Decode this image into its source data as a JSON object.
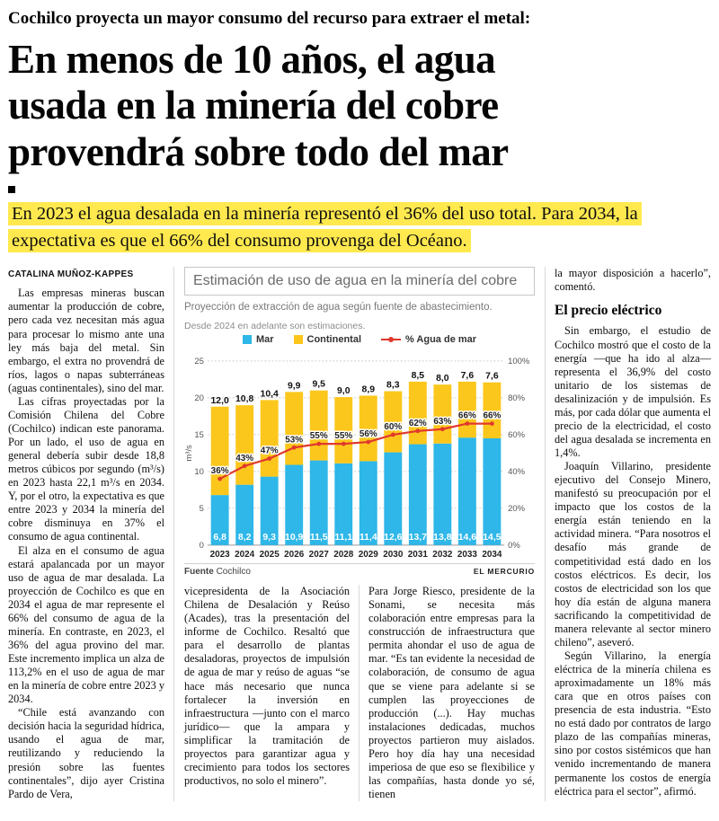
{
  "header": {
    "kicker": "Cochilco proyecta un mayor consumo del recurso para extraer el metal:",
    "headline_lines": [
      "En menos de 10 años, el agua",
      "usada en la minería del cobre",
      "provendrá sobre todo del mar"
    ],
    "deck": "En 2023 el agua desalada en la minería representó el 36% del uso total. Para 2034, la expectativa es que el 66% del consumo provenga del Océano.",
    "highlight_color": "#ffe94f"
  },
  "article": {
    "byline": "CATALINA MUÑOZ-KAPPES",
    "col1": [
      "Las empresas mineras buscan aumentar la producción de cobre, pero cada vez necesitan más agua para procesar lo mismo ante una ley más baja del metal. Sin embargo, el extra no provendrá de ríos, lagos o napas subterráneas (aguas continentales), sino del mar.",
      "Las cifras proyectadas por la Comisión Chilena del Cobre (Cochilco) indican este panorama. Por un lado, el uso de agua en general debería subir desde 18,8 metros cúbicos por segundo (m³/s) en 2023 hasta 22,1 m³/s en 2034. Y, por el otro, la expectativa es que entre 2023 y 2034 la minería del cobre disminuya en 37% el consumo de agua continental.",
      "El alza en el consumo de agua estará apalancada por un mayor uso de agua de mar desalada. La proyección de Cochilco es que en 2034 el agua de mar represente el 66% del consumo de agua de la minería. En contraste, en 2023, el 36% del agua provino del mar. Este incremento implica un alza de 113,2% en el uso de agua de mar en la minería de cobre entre 2023 y 2034.",
      "“Chile está avanzando con decisión hacia la seguridad hídrica, usando el agua de mar, reutilizando y reduciendo la presión sobre las fuentes continentales”, dijo ayer Cristina Pardo de Vera,"
    ],
    "col2": [
      "vicepresidenta de la Asociación Chilena de Desalación y Reúso (Acades), tras la presentación del informe de Cochilco. Resaltó que para el desarrollo de plantas desaladoras, proyectos de impulsión de agua de mar y reúso de aguas “se hace más necesario que nunca fortalecer la inversión en infraestructura —junto con el marco jurídico— que la ampara y simplificar la tramitación de proyectos para garantizar agua y crecimiento para todos los sectores productivos, no solo el minero”."
    ],
    "col3": [
      "Para Jorge Riesco, presidente de la Sonami, se necesita más colaboración entre empresas para la construcción de infraestructura que permita ahondar el uso de agua de mar. “Es tan evidente la necesidad de colaboración, de consumo de agua que se viene para adelante si se cumplen las proyecciones de producción (...). Hay muchas instalaciones dedicadas, muchos proyectos partieron muy aislados. Pero hoy día hay una necesidad imperiosa de que eso se flexibilice y las compañías, hasta donde yo sé, tienen"
    ],
    "col4": {
      "continuation": "la mayor disposición a hacerlo”, comentó.",
      "subhead": "El precio eléctrico",
      "paragraphs": [
        "Sin embargo, el estudio de Cochilco mostró que el costo de la energía —que ha ido al alza— representa el 36,9% del costo unitario de los sistemas de desalinización y de impulsión. Es más, por cada dólar que aumenta el precio de la electricidad, el costo del agua desalada se incrementa en 1,4%.",
        "Joaquín Villarino, presidente ejecutivo del Consejo Minero, manifestó su preocupación por el impacto que los costos de la energía están teniendo en la actividad minera. “Para nosotros el desafío más grande de competitividad está dado en los costos eléctricos. Es decir, los costos de electricidad son los que hoy día están de alguna manera sacrificando la competitividad de manera relevante al sector minero chileno”, aseveró.",
        "Según Villarino, la energía eléctrica de la minería chilena es aproximadamente un 18% más cara que en otros países con presencia de esta industria. “Esto no está dado por contratos de largo plazo de las compañías mineras, sino por costos sistémicos que han venido incrementando de manera permanente los costos de energía eléctrica para el sector”, afirmó."
      ]
    }
  },
  "chart": {
    "title": "Estimación de uso de agua en la minería del cobre",
    "subtitle": "Proyección de extracción de agua según fuente de abastecimiento.",
    "note": "Desde 2024 en adelante son estimaciones.",
    "legend": [
      "Mar",
      "Continental",
      "% Agua de mar"
    ],
    "source_label": "Fuente",
    "source": "Cochilco",
    "credit": "EL MERCURIO",
    "colors": {
      "mar": "#2eb7e8",
      "continental": "#fcc71c",
      "line": "#e0382d"
    }
  },
  "chart_data": {
    "type": "bar",
    "stacked": true,
    "title": "Estimación de uso de agua en la minería del cobre",
    "categories": [
      2023,
      2024,
      2025,
      2026,
      2027,
      2028,
      2029,
      2030,
      2031,
      2032,
      2033,
      2034
    ],
    "series": [
      {
        "name": "Mar",
        "values": [
          6.8,
          8.2,
          9.3,
          10.9,
          11.5,
          11.1,
          11.4,
          12.6,
          13.7,
          13.8,
          14.6,
          14.5
        ]
      },
      {
        "name": "Continental",
        "values": [
          12.0,
          10.8,
          10.4,
          9.9,
          9.5,
          9.0,
          8.9,
          8.3,
          8.5,
          8.0,
          7.6,
          7.6
        ]
      }
    ],
    "line_series": {
      "name": "% Agua de mar",
      "values": [
        36,
        43,
        47,
        53,
        55,
        55,
        56,
        60,
        62,
        63,
        66,
        66
      ]
    },
    "ylabel": "m³/s",
    "ylim": [
      0,
      25
    ],
    "yticks": [
      0,
      5,
      10,
      15,
      20,
      25
    ],
    "y2lim": [
      0,
      100
    ],
    "y2ticks": [
      "0%",
      "20%",
      "40%",
      "60%",
      "80%",
      "100%"
    ],
    "grid": true,
    "legend_position": "top"
  }
}
